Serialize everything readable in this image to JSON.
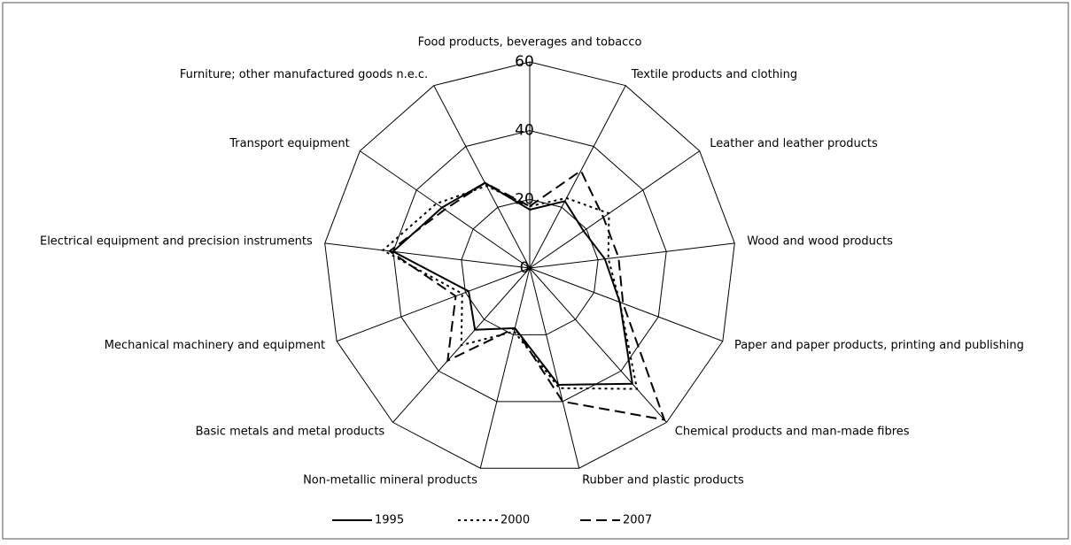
{
  "chart_data": {
    "type": "radar",
    "categories": [
      "Food products, beverages and tobacco",
      "Textile products and clothing",
      "Leather and leather products",
      "Wood and wood products",
      "Paper and paper products, printing and publishing",
      "Chemical products and man-made fibres",
      "Rubber and plastic products",
      "Non-metallic mineral products",
      "Basic metals and metal products",
      "Mechanical machinery and equipment",
      "Electrical equipment and precision instruments",
      "Transport equipment",
      "Furniture; other manufactured goods n.e.c."
    ],
    "series": [
      {
        "name": "1995",
        "color": "#000000",
        "line_style": "solid",
        "values": [
          17,
          22,
          19,
          22,
          28,
          45,
          35,
          18,
          24,
          19,
          40,
          31,
          28
        ]
      },
      {
        "name": "2000",
        "color": "#000000",
        "line_style": "dotted",
        "values": [
          18,
          23,
          28,
          23,
          28,
          47,
          36,
          19,
          30,
          21,
          43,
          33,
          27
        ]
      },
      {
        "name": "2007",
        "color": "#000000",
        "line_style": "dashed",
        "values": [
          18,
          32,
          26,
          26,
          29,
          59,
          40,
          18,
          36,
          23,
          41,
          30,
          28
        ]
      }
    ],
    "ylim": [
      0,
      60
    ],
    "yticks": [
      0,
      20,
      40,
      60
    ],
    "grid": true,
    "legend": "bottom"
  }
}
